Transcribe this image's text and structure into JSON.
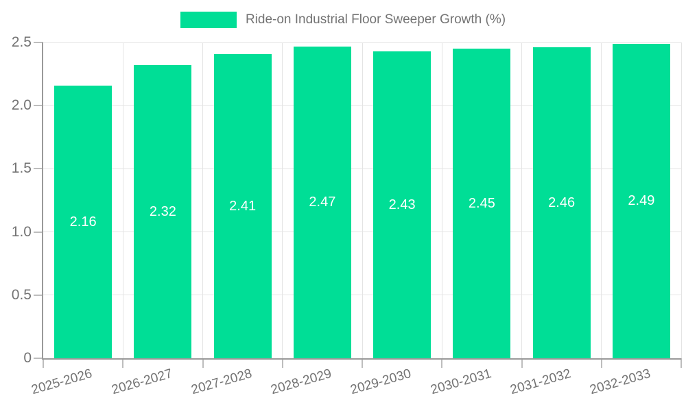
{
  "legend": {
    "label": "Ride-on Industrial Floor Sweeper Growth (%)"
  },
  "chart_data": {
    "type": "bar",
    "title": "Ride-on Industrial Floor Sweeper Growth (%)",
    "categories": [
      "2025-2026",
      "2026-2027",
      "2027-2028",
      "2028-2029",
      "2029-2030",
      "2030-2031",
      "2031-2032",
      "2032-2033"
    ],
    "values": [
      2.16,
      2.32,
      2.41,
      2.47,
      2.43,
      2.45,
      2.46,
      2.49
    ],
    "value_labels": [
      "2.16",
      "2.32",
      "2.41",
      "2.47",
      "2.43",
      "2.45",
      "2.46",
      "2.49"
    ],
    "xlabel": "",
    "ylabel": "",
    "ylim": [
      0,
      2.5
    ],
    "yticks": [
      0,
      0.5,
      1.0,
      1.5,
      2.0,
      2.5
    ],
    "ytick_labels": [
      "0",
      "0.5",
      "1.0",
      "1.5",
      "2.0",
      "2.5"
    ],
    "grid": true,
    "legend_position": "top-center",
    "xtick_rotation_deg": -16,
    "colors": {
      "bar": "#00DE96",
      "grid": "#e4e4e4",
      "axis": "#9a9a9a",
      "tick": "#bdbdbd",
      "tick_text": "#737373",
      "value_text": "#ffffff",
      "background": "#ffffff"
    }
  }
}
